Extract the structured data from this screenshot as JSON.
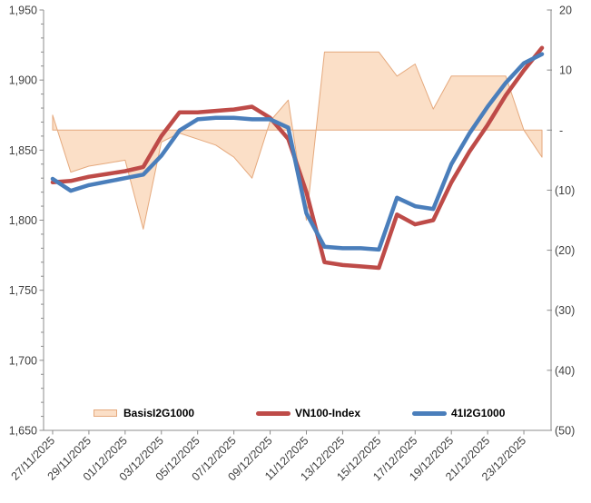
{
  "chart_data": {
    "type": "combo-area-line",
    "title": "",
    "categories": [
      "27/11/2025",
      "28/11/2025",
      "29/11/2025",
      "30/11/2025",
      "01/12/2025",
      "02/12/2025",
      "03/12/2025",
      "04/12/2025",
      "05/12/2025",
      "06/12/2025",
      "07/12/2025",
      "08/12/2025",
      "09/12/2025",
      "10/12/2025",
      "11/12/2025",
      "12/12/2025",
      "13/12/2025",
      "14/12/2025",
      "15/12/2025",
      "16/12/2025",
      "17/12/2025",
      "18/12/2025",
      "19/12/2025",
      "20/12/2025",
      "21/12/2025",
      "22/12/2025",
      "23/12/2025",
      "24/12/2025"
    ],
    "x_tick_labels": [
      "27/11/2025",
      "29/11/2025",
      "01/12/2025",
      "03/12/2025",
      "05/12/2025",
      "07/12/2025",
      "09/12/2025",
      "11/12/2025",
      "13/12/2025",
      "15/12/2025",
      "17/12/2025",
      "19/12/2025",
      "21/12/2025",
      "23/12/2025"
    ],
    "series": [
      {
        "name": "BasisI2G1000",
        "type": "area",
        "axis": "right",
        "fill": "#FBDFC7",
        "border": "#E5A97D",
        "values": [
          2.5,
          -7,
          -6,
          -5.5,
          -5,
          -16.5,
          -2,
          -0.5,
          -1.5,
          -2.5,
          -4.5,
          -8,
          1.5,
          5,
          -15,
          13,
          13,
          13,
          13,
          9,
          11,
          3.5,
          9,
          9,
          9,
          9,
          0,
          -4.5
        ]
      },
      {
        "name": "VN100-Index",
        "type": "line",
        "axis": "left",
        "color": "#BE4B48",
        "values": [
          1827,
          1828,
          1831,
          1833,
          1835,
          1838,
          1860,
          1877,
          1877,
          1878,
          1879,
          1881,
          1873,
          1858,
          1820,
          1770,
          1768,
          1767,
          1766,
          1804,
          1797,
          1800,
          1827,
          1849,
          1868,
          1889,
          1907,
          1923
        ]
      },
      {
        "name": "41I2G1000",
        "type": "line",
        "axis": "left",
        "color": "#4A7EBB",
        "values": [
          1829.5,
          1821,
          1825,
          1827.5,
          1830,
          1832.5,
          1846,
          1864,
          1872,
          1873,
          1873,
          1872,
          1872,
          1866,
          1805,
          1781,
          1780,
          1780,
          1779,
          1816,
          1810,
          1808,
          1840,
          1862,
          1881,
          1898,
          1912,
          1918.5
        ]
      }
    ],
    "left_axis": {
      "min": 1650,
      "max": 1950,
      "major_step": 50,
      "minor_step": 10,
      "tick_labels": [
        "1,950",
        "1,900",
        "1,850",
        "1,800",
        "1,750",
        "1,700",
        "1,650"
      ]
    },
    "right_axis": {
      "min": -50,
      "max": 20,
      "major_step": 10,
      "tick_labels": [
        "20",
        "10",
        "-",
        "(10)",
        "(20)",
        "(30)",
        "(40)",
        "(50)"
      ]
    },
    "axis_color": "#8C8C8C",
    "label_color": "#3F3F3F",
    "legend_position": "bottom-inside",
    "grid": "off"
  }
}
